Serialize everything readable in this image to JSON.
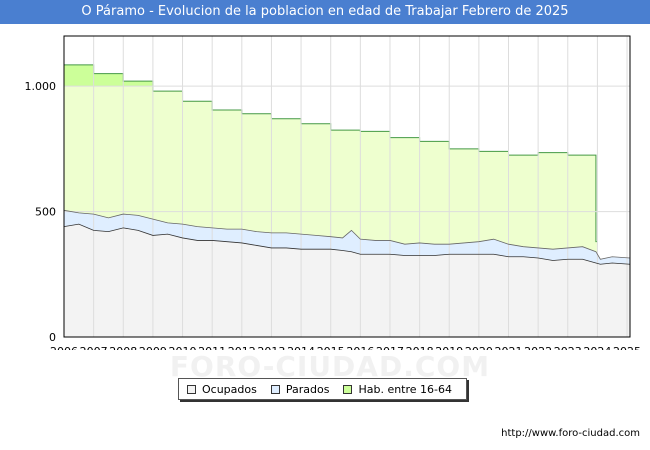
{
  "colors": {
    "title_bg": "#4a7fd0",
    "ocupados_fill": "#f3f3f3",
    "parados_fill": "#dfeeff",
    "hab_fill": "#eeffcf",
    "hab_highlight": "#ccff99",
    "line": "#333333",
    "grid": "#dddddd"
  },
  "watermark": "FORO-CIUDAD.COM",
  "source": "http://www.foro-ciudad.com",
  "chart_data": {
    "type": "area",
    "title": "O Páramo - Evolucion de la poblacion en edad de Trabajar Febrero de 2025",
    "xlabel": "",
    "ylabel": "",
    "x_ticks": [
      "2006",
      "2007",
      "2008",
      "2009",
      "2010",
      "2011",
      "2012",
      "2013",
      "2014",
      "2015",
      "2016",
      "2017",
      "2018",
      "2019",
      "2020",
      "2021",
      "2022",
      "2023",
      "2024",
      "2025"
    ],
    "y_ticks": [
      {
        "value": 0,
        "label": "0"
      },
      {
        "value": 500,
        "label": "500"
      },
      {
        "value": 1000,
        "label": "1.000"
      }
    ],
    "xlim": [
      2006,
      2025.1
    ],
    "ylim": [
      0,
      1200
    ],
    "grid": true,
    "legend": {
      "position": "bottom-center",
      "entries": [
        {
          "name": "Ocupados",
          "key": "ocupados"
        },
        {
          "name": "Parados",
          "key": "parados"
        },
        {
          "name": "Hab. entre 16-64",
          "key": "hab"
        }
      ]
    },
    "series": [
      {
        "name": "Hab. entre 16-64",
        "key": "hab",
        "step": true,
        "x": [
          2006,
          2007,
          2008,
          2009,
          2010,
          2011,
          2012,
          2013,
          2014,
          2015,
          2016,
          2017,
          2018,
          2019,
          2020,
          2021,
          2022,
          2023,
          2023.95
        ],
        "values": [
          1085,
          1050,
          1020,
          980,
          940,
          905,
          890,
          870,
          850,
          825,
          820,
          795,
          780,
          750,
          740,
          725,
          735,
          725,
          380
        ]
      },
      {
        "name": "Parados",
        "key": "parados",
        "x": [
          2006,
          2006.5,
          2007,
          2007.5,
          2008,
          2008.5,
          2009,
          2009.5,
          2010,
          2010.5,
          2011,
          2011.5,
          2012,
          2012.5,
          2013,
          2013.5,
          2014,
          2014.5,
          2015,
          2015.4,
          2015.7,
          2016,
          2016.5,
          2017,
          2017.5,
          2018,
          2018.5,
          2019,
          2019.5,
          2020,
          2020.5,
          2021,
          2021.5,
          2022,
          2022.5,
          2023,
          2023.5,
          2023.95,
          2024.1,
          2024.5,
          2025.1
        ],
        "values": [
          505,
          495,
          490,
          475,
          490,
          485,
          470,
          455,
          450,
          440,
          435,
          430,
          430,
          420,
          415,
          415,
          410,
          405,
          400,
          395,
          425,
          390,
          385,
          385,
          370,
          375,
          370,
          370,
          375,
          380,
          390,
          370,
          360,
          355,
          350,
          355,
          360,
          340,
          310,
          320,
          315
        ]
      },
      {
        "name": "Ocupados",
        "key": "ocupados",
        "x": [
          2006,
          2006.5,
          2007,
          2007.5,
          2008,
          2008.5,
          2009,
          2009.5,
          2010,
          2010.5,
          2011,
          2011.5,
          2012,
          2012.5,
          2013,
          2013.5,
          2014,
          2014.5,
          2015,
          2015.4,
          2015.7,
          2016,
          2016.5,
          2017,
          2017.5,
          2018,
          2018.5,
          2019,
          2019.5,
          2020,
          2020.5,
          2021,
          2021.5,
          2022,
          2022.5,
          2023,
          2023.5,
          2023.95,
          2024.1,
          2024.5,
          2025.1
        ],
        "values": [
          440,
          450,
          425,
          420,
          435,
          425,
          405,
          410,
          395,
          385,
          385,
          380,
          375,
          365,
          355,
          355,
          350,
          350,
          350,
          345,
          340,
          330,
          330,
          330,
          325,
          325,
          325,
          330,
          330,
          330,
          330,
          320,
          320,
          315,
          305,
          310,
          310,
          295,
          290,
          295,
          290
        ]
      }
    ]
  }
}
